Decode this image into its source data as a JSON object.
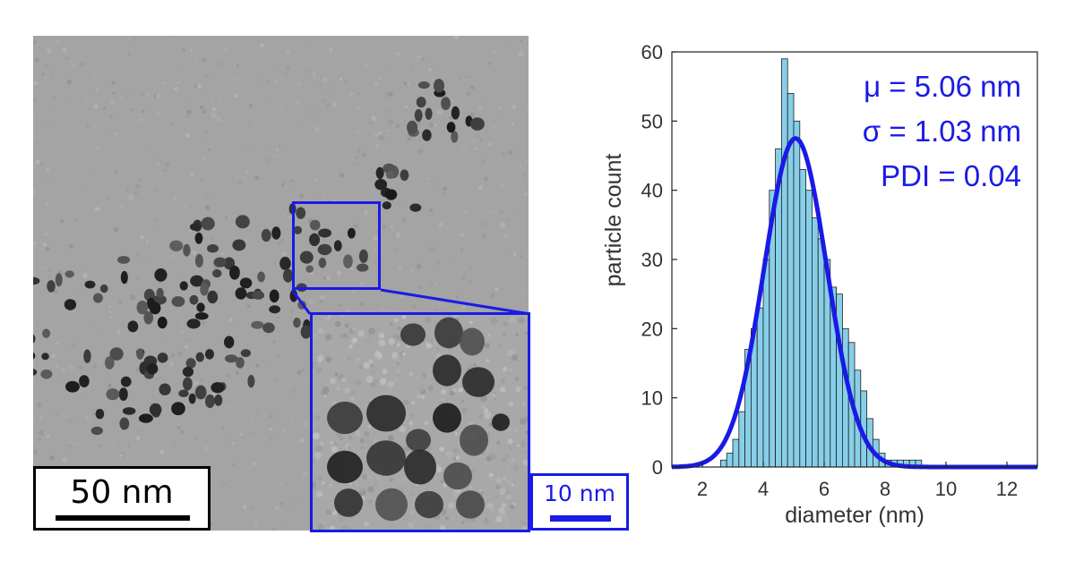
{
  "panels": {
    "left_scalebar": {
      "label": "50 nm"
    },
    "inset_scalebar": {
      "label": "10 nm"
    }
  },
  "colors": {
    "accent": "#1a1ae6",
    "bars": "#87cfe8",
    "bar_edge": "#1f1f1f"
  },
  "chart_data": {
    "type": "bar",
    "xlabel": "diameter (nm)",
    "ylabel": "particle count",
    "xlim": [
      1,
      13
    ],
    "ylim": [
      0,
      60
    ],
    "xticks": [
      2,
      4,
      6,
      8,
      10,
      12
    ],
    "yticks": [
      0,
      10,
      20,
      30,
      40,
      50,
      60
    ],
    "bin_width": 0.2,
    "bin_starts": [
      2.6,
      2.8,
      3.0,
      3.2,
      3.4,
      3.6,
      3.8,
      4.0,
      4.2,
      4.4,
      4.6,
      4.8,
      5.0,
      5.2,
      5.4,
      5.6,
      5.8,
      6.0,
      6.2,
      6.4,
      6.6,
      6.8,
      7.0,
      7.2,
      7.4,
      7.6,
      7.8,
      8.0,
      8.2,
      8.4,
      8.6,
      8.8,
      9.0
    ],
    "counts": [
      1,
      2,
      4,
      8,
      17,
      20,
      23,
      30,
      40,
      46,
      59,
      54,
      50,
      43,
      40,
      36,
      33,
      30,
      26,
      25,
      20,
      18,
      14,
      11,
      7,
      4,
      2,
      1,
      1,
      1,
      1,
      1,
      1
    ],
    "fit": {
      "type": "gaussian",
      "mean": 5.06,
      "sd": 1.03,
      "peak": 47.5
    },
    "annotations": [
      "μ = 5.06 nm",
      "σ = 1.03 nm",
      "PDI = 0.04"
    ]
  }
}
